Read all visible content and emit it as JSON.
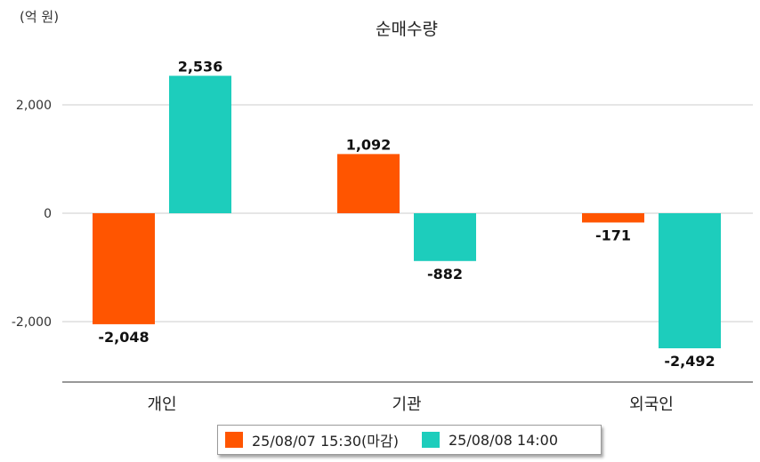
{
  "chart_data": {
    "type": "bar",
    "title": "순매수량",
    "unit_label": "(억 원)",
    "categories": [
      "개인",
      "기관",
      "외국인"
    ],
    "series": [
      {
        "name": "25/08/07 15:30(마감)",
        "color": "#ff5500",
        "values": [
          -2048,
          1092,
          -171
        ]
      },
      {
        "name": "25/08/08 14:00",
        "color": "#1dcdbc",
        "values": [
          2536,
          -882,
          -2492
        ]
      }
    ],
    "data_labels": [
      [
        "-2,048",
        "1,092",
        "-171"
      ],
      [
        "2,536",
        "-882",
        "-2,492"
      ]
    ],
    "yticks": [
      2000,
      0,
      -2000
    ],
    "ytick_labels": [
      "2,000",
      "0",
      "-2,000"
    ],
    "ylim": [
      -3100,
      2600
    ],
    "grid": true,
    "legend_position": "bottom"
  }
}
